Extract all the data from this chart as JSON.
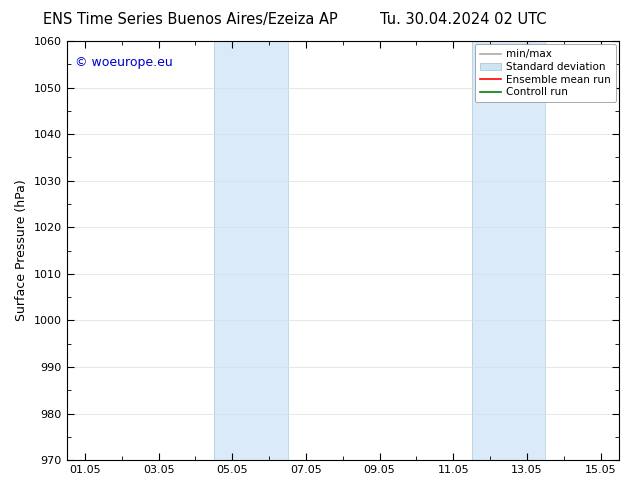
{
  "title_left": "ENS Time Series Buenos Aires/Ezeiza AP",
  "title_right": "Tu. 30.04.2024 02 UTC",
  "ylabel": "Surface Pressure (hPa)",
  "ylim": [
    970,
    1060
  ],
  "yticks": [
    970,
    980,
    990,
    1000,
    1010,
    1020,
    1030,
    1040,
    1050,
    1060
  ],
  "xtick_labels": [
    "01.05",
    "03.05",
    "05.05",
    "07.05",
    "09.05",
    "11.05",
    "13.05",
    "15.05"
  ],
  "xtick_positions": [
    0,
    2,
    4,
    6,
    8,
    10,
    12,
    14
  ],
  "xlim": [
    -0.5,
    14.5
  ],
  "shaded_regions": [
    {
      "x_start": 3.5,
      "x_end": 5.5,
      "color": "#daeaf8"
    },
    {
      "x_start": 10.5,
      "x_end": 12.5,
      "color": "#daeaf8"
    }
  ],
  "background_color": "#ffffff",
  "plot_bg_color": "#ffffff",
  "watermark_text": "© woeurope.eu",
  "watermark_color": "#0000cc",
  "legend_items": [
    {
      "label": "min/max",
      "color": "#aaaaaa",
      "lw": 1.2,
      "style": "solid",
      "type": "line"
    },
    {
      "label": "Standard deviation",
      "color": "#cce4f4",
      "lw": 6,
      "style": "solid",
      "type": "patch"
    },
    {
      "label": "Ensemble mean run",
      "color": "#ff0000",
      "lw": 1.2,
      "style": "solid",
      "type": "line"
    },
    {
      "label": "Controll run",
      "color": "#008000",
      "lw": 1.2,
      "style": "solid",
      "type": "line"
    }
  ],
  "title_fontsize": 10.5,
  "ylabel_fontsize": 9,
  "tick_fontsize": 8,
  "legend_fontsize": 7.5,
  "watermark_fontsize": 9
}
